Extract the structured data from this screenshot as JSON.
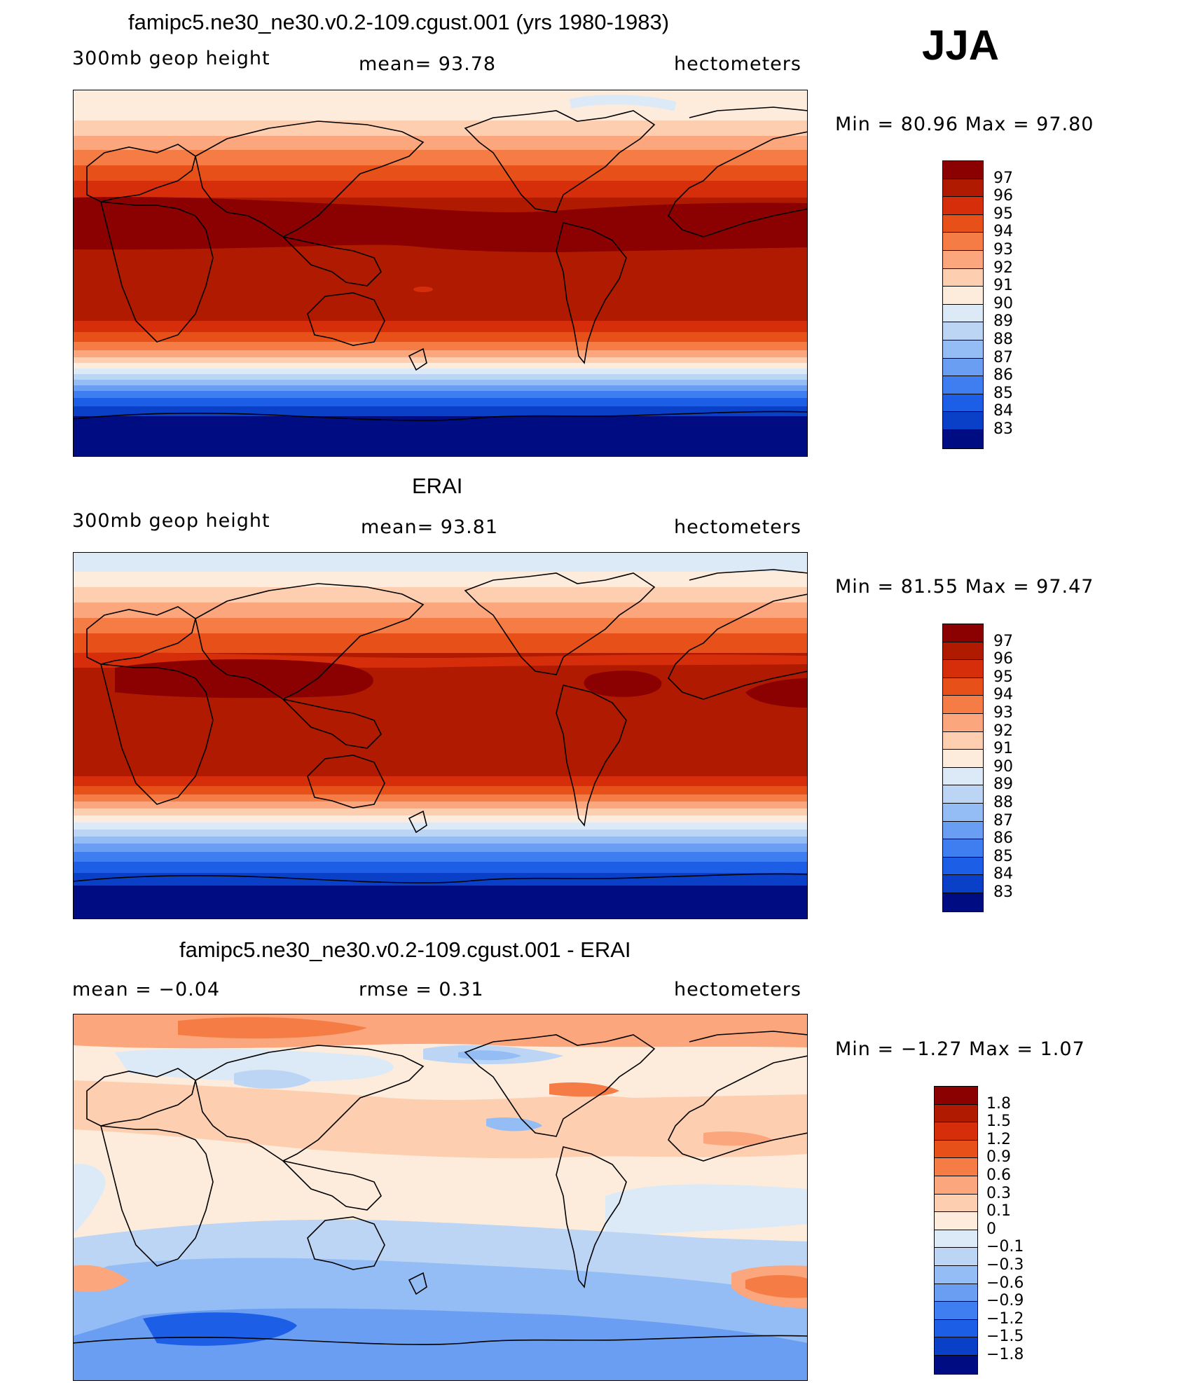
{
  "season": "JJA",
  "panels": [
    {
      "title": "famipc5.ne30_ne30.v0.2-109.cgust.001 (yrs 1980-1983)",
      "left_label": "300mb  geop  height",
      "center_label": "mean=   93.78",
      "right_label": "hectometers",
      "minmax": "Min  =    80.96  Max  =    97.80",
      "colorbar_labels": [
        "97",
        "96",
        "95",
        "94",
        "93",
        "92",
        "91",
        "90",
        "89",
        "88",
        "87",
        "86",
        "85",
        "84",
        "83"
      ],
      "colorbar_colors": [
        "#8b0000",
        "#b01a00",
        "#d62d0a",
        "#e8501a",
        "#f57d45",
        "#fba67c",
        "#fdcfb0",
        "#fdecdc",
        "#dce9f7",
        "#bcd5f5",
        "#94bcf5",
        "#6a9ef3",
        "#3f7ef0",
        "#1c5ee6",
        "#0a3fc8",
        "#000c82"
      ],
      "map_id": "model"
    },
    {
      "title": "ERAI",
      "left_label": "300mb  geop  height",
      "center_label": "mean=   93.81",
      "right_label": "hectometers",
      "minmax": "Min  =    81.55  Max  =    97.47",
      "colorbar_labels": [
        "97",
        "96",
        "95",
        "94",
        "93",
        "92",
        "91",
        "90",
        "89",
        "88",
        "87",
        "86",
        "85",
        "84",
        "83"
      ],
      "colorbar_colors": [
        "#8b0000",
        "#b01a00",
        "#d62d0a",
        "#e8501a",
        "#f57d45",
        "#fba67c",
        "#fdcfb0",
        "#fdecdc",
        "#dce9f7",
        "#bcd5f5",
        "#94bcf5",
        "#6a9ef3",
        "#3f7ef0",
        "#1c5ee6",
        "#0a3fc8",
        "#000c82"
      ],
      "map_id": "obs"
    },
    {
      "title": "famipc5.ne30_ne30.v0.2-109.cgust.001 - ERAI",
      "left_label": "mean  =    −0.04",
      "center_label": "rmse  =     0.31",
      "right_label": "hectometers",
      "minmax": "Min  =    −1.27  Max  =      1.07",
      "colorbar_labels": [
        "1.8",
        "1.5",
        "1.2",
        "0.9",
        "0.6",
        "0.3",
        "0.1",
        "0",
        "−0.1",
        "−0.3",
        "−0.6",
        "−0.9",
        "−1.2",
        "−1.5",
        "−1.8"
      ],
      "colorbar_colors": [
        "#8b0000",
        "#b01a00",
        "#d62d0a",
        "#e8501a",
        "#f57d45",
        "#fba67c",
        "#fdcfb0",
        "#fdecdc",
        "#dce9f7",
        "#bcd5f5",
        "#94bcf5",
        "#6a9ef3",
        "#3f7ef0",
        "#1c5ee6",
        "#0a3fc8",
        "#000c82"
      ],
      "map_id": "diff"
    }
  ]
}
